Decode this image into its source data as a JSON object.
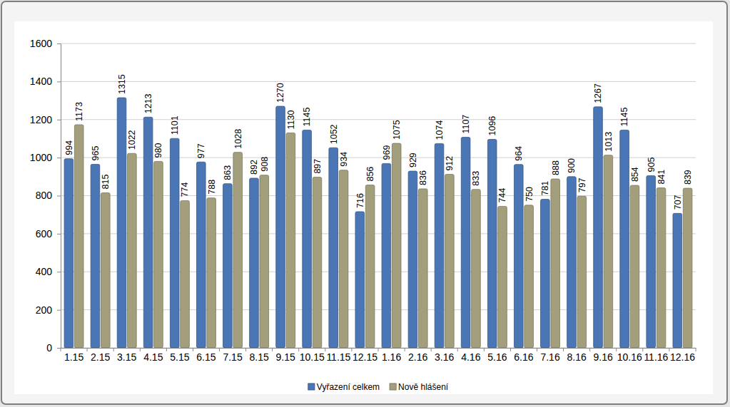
{
  "chart_data": {
    "type": "bar",
    "categories": [
      "1.15",
      "2.15",
      "3.15",
      "4.15",
      "5.15",
      "6.15",
      "7.15",
      "8.15",
      "9.15",
      "10.15",
      "11.15",
      "12.15",
      "1.16",
      "2.16",
      "3.16",
      "4.16",
      "5.16",
      "6.16",
      "7.16",
      "8.16",
      "9.16",
      "10.16",
      "11.16",
      "12.16"
    ],
    "series": [
      {
        "name": "Vyřazení celkem",
        "color": "#4a76b5",
        "values": [
          994,
          965,
          1315,
          1213,
          1101,
          977,
          863,
          892,
          1270,
          1145,
          1052,
          716,
          969,
          929,
          1074,
          1107,
          1096,
          964,
          781,
          900,
          1267,
          1145,
          905,
          707
        ]
      },
      {
        "name": "Nově hlášení",
        "color": "#a39f7c",
        "values": [
          1173,
          815,
          1022,
          980,
          774,
          788,
          1028,
          908,
          1130,
          897,
          934,
          856,
          1075,
          836,
          912,
          833,
          744,
          750,
          888,
          797,
          1013,
          854,
          841,
          839
        ]
      }
    ],
    "ylim": [
      0,
      1600
    ],
    "yticks": [
      0,
      200,
      400,
      600,
      800,
      1000,
      1200,
      1400,
      1600
    ],
    "grid": true,
    "data_labels": true,
    "legend": "bottom"
  }
}
